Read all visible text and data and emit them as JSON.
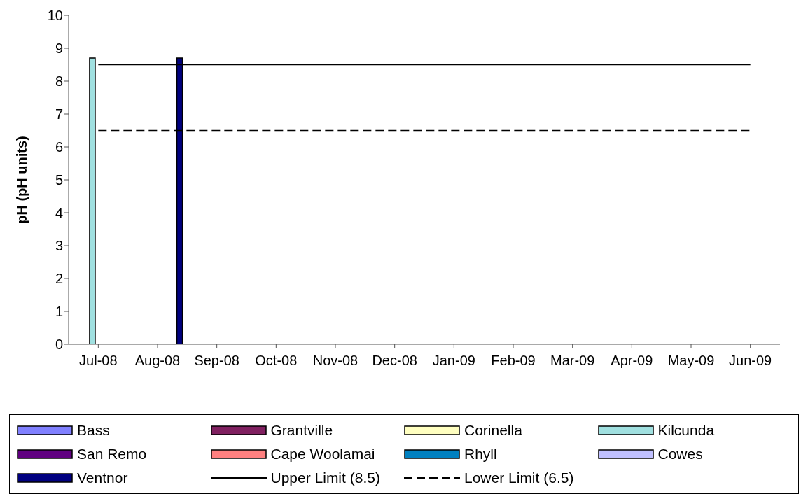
{
  "chart_data": {
    "type": "bar",
    "ylabel": "pH (pH units)",
    "categories": [
      "Jul-08",
      "Aug-08",
      "Sep-08",
      "Oct-08",
      "Nov-08",
      "Dec-08",
      "Jan-09",
      "Feb-09",
      "Mar-09",
      "Apr-09",
      "May-09",
      "Jun-09"
    ],
    "series": [
      {
        "name": "Bass",
        "color": "#8080ff",
        "values": [
          null,
          null,
          null,
          null,
          null,
          null,
          null,
          null,
          null,
          null,
          null,
          null
        ]
      },
      {
        "name": "Grantville",
        "color": "#802060",
        "values": [
          null,
          null,
          null,
          null,
          null,
          null,
          null,
          null,
          null,
          null,
          null,
          null
        ]
      },
      {
        "name": "Corinella",
        "color": "#ffffc0",
        "values": [
          null,
          null,
          null,
          null,
          null,
          null,
          null,
          null,
          null,
          null,
          null,
          null
        ]
      },
      {
        "name": "Kilcunda",
        "color": "#a0e0e0",
        "values": [
          8.7,
          null,
          null,
          null,
          null,
          null,
          null,
          null,
          null,
          null,
          null,
          null
        ]
      },
      {
        "name": "San Remo",
        "color": "#600080",
        "values": [
          null,
          null,
          null,
          null,
          null,
          null,
          null,
          null,
          null,
          null,
          null,
          null
        ]
      },
      {
        "name": "Cape Woolamai",
        "color": "#ff8080",
        "values": [
          null,
          null,
          null,
          null,
          null,
          null,
          null,
          null,
          null,
          null,
          null,
          null
        ]
      },
      {
        "name": "Rhyll",
        "color": "#0080c0",
        "values": [
          null,
          null,
          null,
          null,
          null,
          null,
          null,
          null,
          null,
          null,
          null,
          null
        ]
      },
      {
        "name": "Cowes",
        "color": "#c0c0ff",
        "values": [
          null,
          null,
          null,
          null,
          null,
          null,
          null,
          null,
          null,
          null,
          null,
          null
        ]
      },
      {
        "name": "Ventnor",
        "color": "#000080",
        "values": [
          null,
          8.7,
          null,
          null,
          null,
          null,
          null,
          null,
          null,
          null,
          null,
          null
        ]
      },
      {
        "name": "Upper Limit (8.5)",
        "type": "line",
        "color": "#000000",
        "line_style": "solid",
        "values": [
          8.5,
          8.5,
          8.5,
          8.5,
          8.5,
          8.5,
          8.5,
          8.5,
          8.5,
          8.5,
          8.5,
          8.5
        ]
      },
      {
        "name": "Lower Limit (6.5)",
        "type": "line",
        "color": "#000000",
        "line_style": "dashed",
        "values": [
          6.5,
          6.5,
          6.5,
          6.5,
          6.5,
          6.5,
          6.5,
          6.5,
          6.5,
          6.5,
          6.5,
          6.5
        ]
      }
    ],
    "ylim": [
      0,
      10
    ],
    "yticks": [
      0,
      1,
      2,
      3,
      4,
      5,
      6,
      7,
      8,
      9,
      10
    ],
    "grid": false,
    "legend": "bottom",
    "marker": "none"
  }
}
